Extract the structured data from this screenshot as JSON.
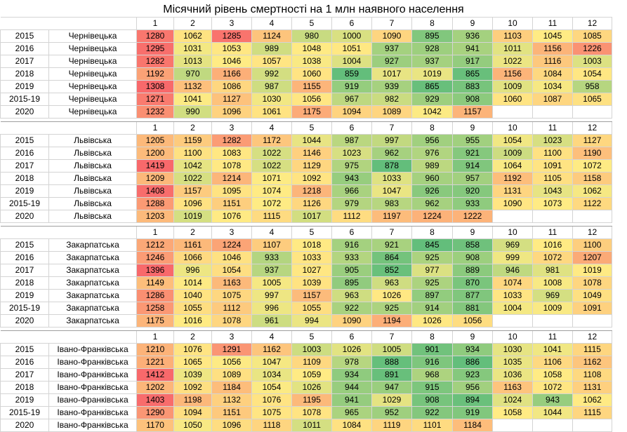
{
  "title": "Місячний рівень смертності на 1 млн наявного населення",
  "months": [
    "1",
    "2",
    "3",
    "4",
    "5",
    "6",
    "7",
    "8",
    "9",
    "10",
    "11",
    "12"
  ],
  "blocks": [
    {
      "region": "Чернівецька",
      "rows": [
        {
          "year": "2015",
          "values": [
            1280,
            1062,
            1285,
            1124,
            980,
            1000,
            1090,
            895,
            936,
            1103,
            1045,
            1085
          ]
        },
        {
          "year": "2016",
          "values": [
            1295,
            1031,
            1053,
            989,
            1048,
            1051,
            937,
            928,
            941,
            1011,
            1156,
            1226
          ]
        },
        {
          "year": "2017",
          "values": [
            1282,
            1013,
            1046,
            1057,
            1038,
            1004,
            927,
            937,
            917,
            1022,
            1116,
            1003
          ]
        },
        {
          "year": "2018",
          "values": [
            1192,
            970,
            1166,
            992,
            1060,
            859,
            1017,
            1019,
            865,
            1156,
            1084,
            1054
          ]
        },
        {
          "year": "2019",
          "values": [
            1308,
            1132,
            1086,
            987,
            1155,
            919,
            939,
            865,
            883,
            1009,
            1034,
            958
          ]
        },
        {
          "year": "2015-19",
          "values": [
            1271,
            1041,
            1127,
            1030,
            1056,
            967,
            982,
            929,
            908,
            1060,
            1087,
            1065
          ]
        },
        {
          "year": "2020",
          "values": [
            1232,
            990,
            1096,
            1061,
            1175,
            1094,
            1089,
            1042,
            1157,
            null,
            null,
            null
          ]
        }
      ]
    },
    {
      "region": "Львівська",
      "rows": [
        {
          "year": "2015",
          "values": [
            1205,
            1159,
            1282,
            1172,
            1044,
            987,
            997,
            956,
            955,
            1054,
            1023,
            1127
          ]
        },
        {
          "year": "2016",
          "values": [
            1200,
            1100,
            1083,
            1022,
            1146,
            1023,
            962,
            976,
            921,
            1009,
            1100,
            1190
          ]
        },
        {
          "year": "2017",
          "values": [
            1419,
            1042,
            1078,
            1022,
            1129,
            975,
            878,
            989,
            914,
            1064,
            1091,
            1072
          ]
        },
        {
          "year": "2018",
          "values": [
            1209,
            1022,
            1214,
            1071,
            1092,
            943,
            1033,
            960,
            957,
            1192,
            1105,
            1158
          ]
        },
        {
          "year": "2019",
          "values": [
            1408,
            1157,
            1095,
            1074,
            1218,
            966,
            1047,
            926,
            920,
            1131,
            1043,
            1062
          ]
        },
        {
          "year": "2015-19",
          "values": [
            1288,
            1096,
            1151,
            1072,
            1126,
            979,
            983,
            962,
            933,
            1090,
            1073,
            1122
          ]
        },
        {
          "year": "2020",
          "values": [
            1203,
            1019,
            1076,
            1115,
            1017,
            1112,
            1197,
            1224,
            1222,
            null,
            null,
            null
          ]
        }
      ]
    },
    {
      "region": "Закарпатська",
      "rows": [
        {
          "year": "2015",
          "values": [
            1212,
            1161,
            1224,
            1107,
            1018,
            916,
            921,
            845,
            858,
            969,
            1016,
            1100
          ]
        },
        {
          "year": "2016",
          "values": [
            1246,
            1066,
            1046,
            933,
            1033,
            933,
            864,
            925,
            908,
            999,
            1072,
            1207
          ]
        },
        {
          "year": "2017",
          "values": [
            1396,
            996,
            1054,
            937,
            1027,
            905,
            852,
            977,
            889,
            946,
            981,
            1019
          ]
        },
        {
          "year": "2018",
          "values": [
            1149,
            1014,
            1163,
            1005,
            1039,
            895,
            963,
            925,
            870,
            1074,
            1008,
            1078
          ]
        },
        {
          "year": "2019",
          "values": [
            1286,
            1040,
            1075,
            997,
            1157,
            963,
            1026,
            897,
            877,
            1033,
            969,
            1049
          ]
        },
        {
          "year": "2015-19",
          "values": [
            1258,
            1055,
            1112,
            996,
            1055,
            922,
            925,
            914,
            881,
            1004,
            1009,
            1091
          ]
        },
        {
          "year": "2020",
          "values": [
            1175,
            1016,
            1078,
            961,
            994,
            1090,
            1194,
            1026,
            1056,
            null,
            null,
            null
          ]
        }
      ]
    },
    {
      "region": "Івано-Франківська",
      "rows": [
        {
          "year": "2015",
          "values": [
            1210,
            1076,
            1291,
            1162,
            1003,
            1026,
            1005,
            901,
            934,
            1030,
            1041,
            1115
          ]
        },
        {
          "year": "2016",
          "values": [
            1221,
            1065,
            1056,
            1047,
            1109,
            978,
            888,
            916,
            886,
            1035,
            1106,
            1162
          ]
        },
        {
          "year": "2017",
          "values": [
            1412,
            1039,
            1089,
            1034,
            1059,
            934,
            891,
            968,
            923,
            1036,
            1058,
            1108
          ]
        },
        {
          "year": "2018",
          "values": [
            1202,
            1092,
            1184,
            1054,
            1026,
            944,
            947,
            915,
            956,
            1163,
            1072,
            1131
          ]
        },
        {
          "year": "2019",
          "values": [
            1403,
            1198,
            1132,
            1076,
            1195,
            941,
            1029,
            908,
            894,
            1024,
            943,
            1062
          ]
        },
        {
          "year": "2015-19",
          "values": [
            1290,
            1094,
            1151,
            1075,
            1078,
            965,
            952,
            922,
            919,
            1058,
            1044,
            1115
          ]
        },
        {
          "year": "2020",
          "values": [
            1170,
            1050,
            1096,
            1118,
            1011,
            1084,
            1119,
            1101,
            1184,
            null,
            null,
            null
          ]
        }
      ]
    }
  ],
  "colors": {
    "low": "#63be7b",
    "mid": "#ffeb84",
    "high": "#f8696b"
  }
}
